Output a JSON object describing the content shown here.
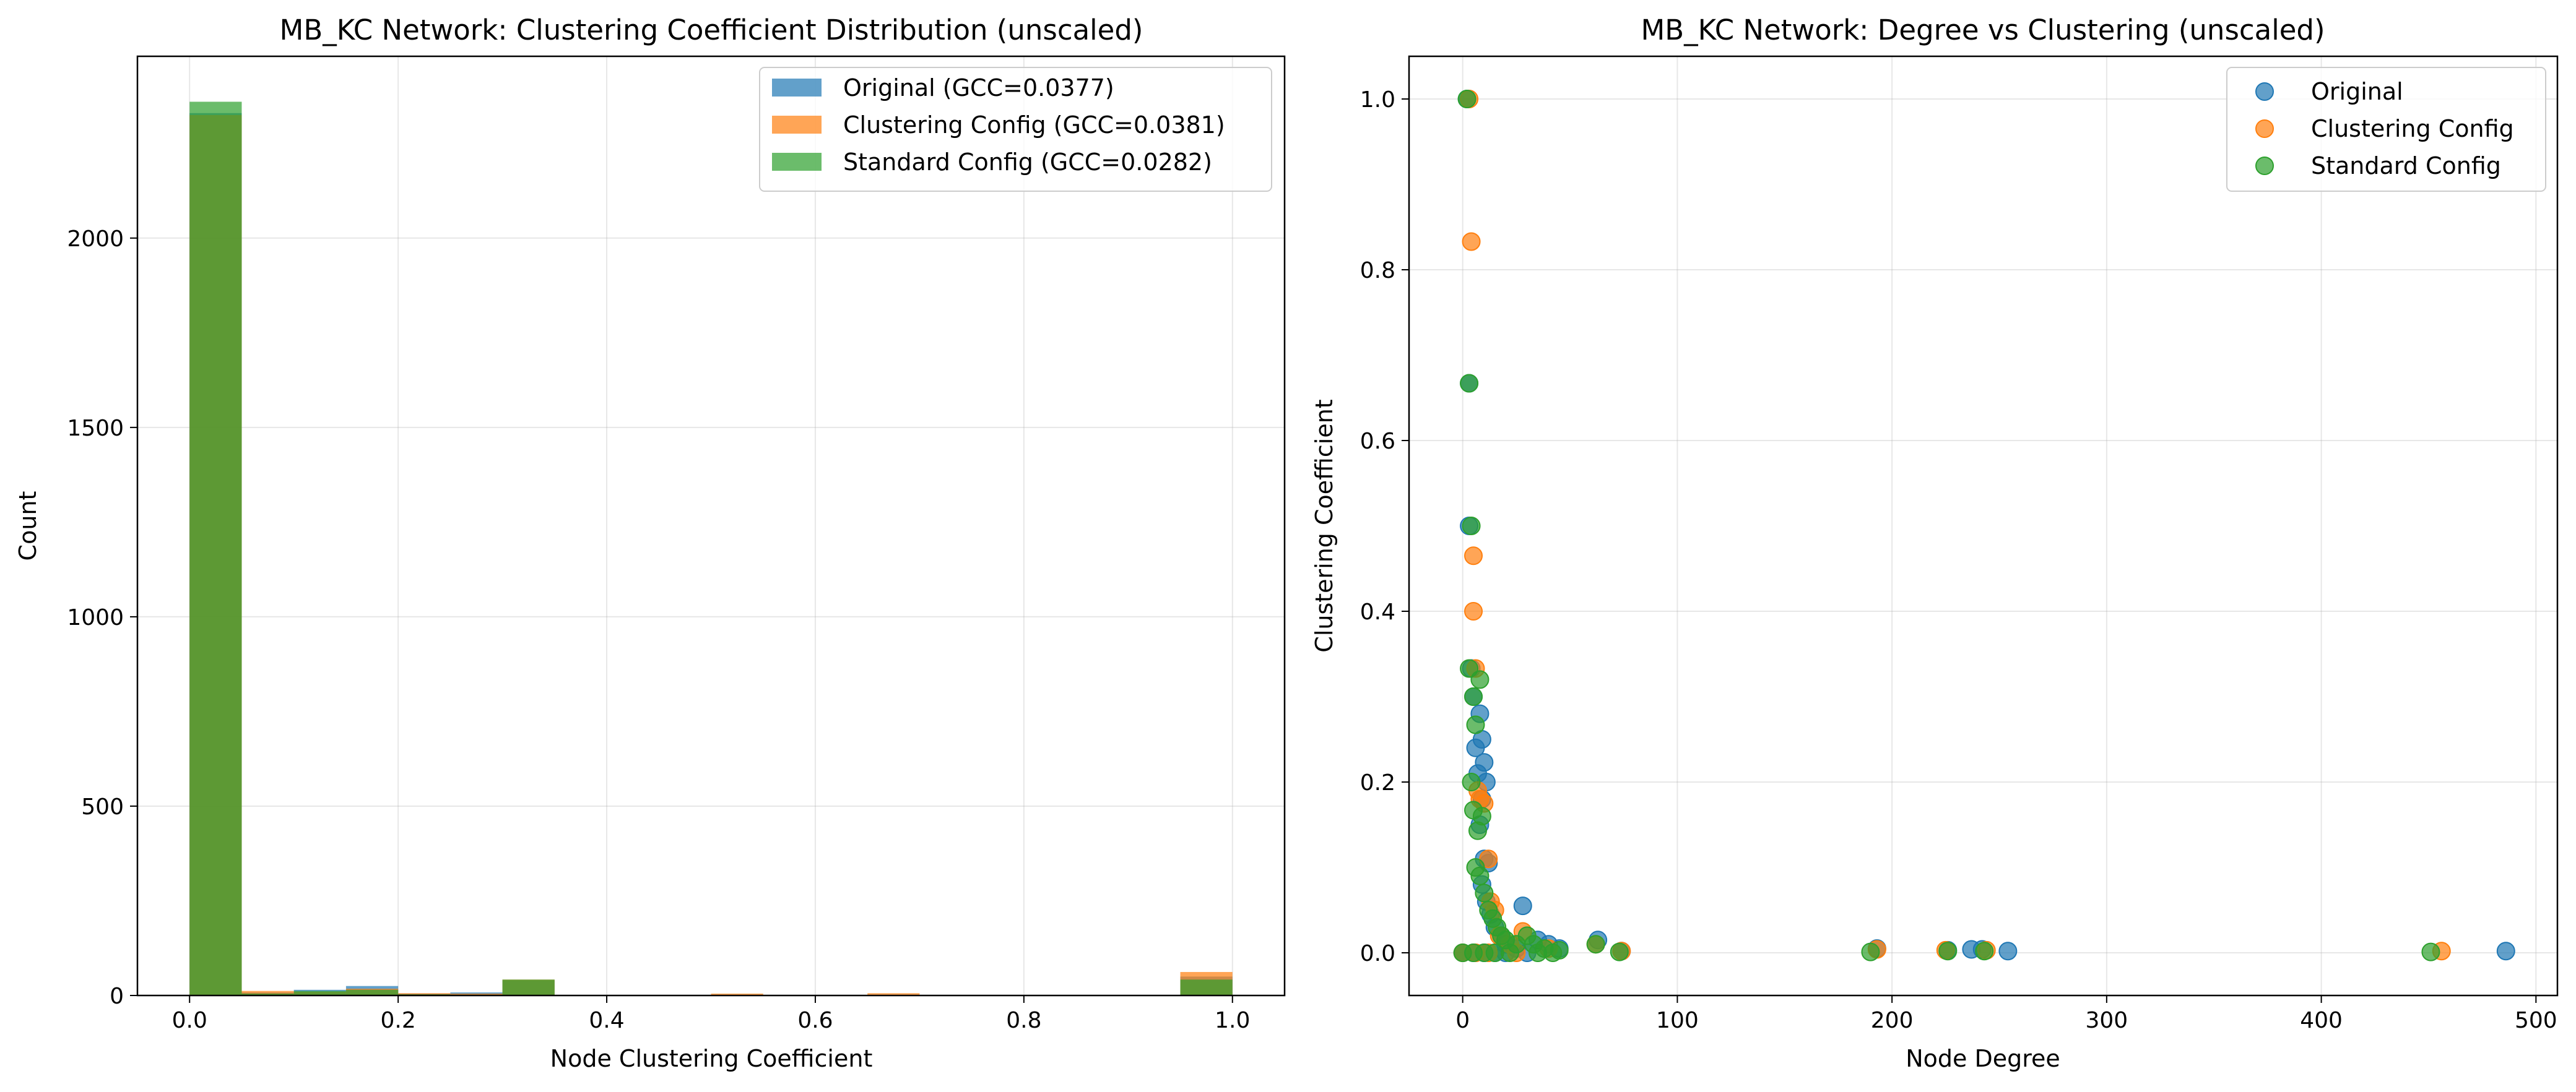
{
  "chart_data": [
    {
      "type": "histogram",
      "title": "MB_KC Network: Clustering Coefficient Distribution (unscaled)",
      "xlabel": "Node Clustering Coefficient",
      "ylabel": "Count",
      "xlim": [
        -0.05,
        1.05
      ],
      "ylim": [
        0,
        2480
      ],
      "xticks": [
        "0.0",
        "0.2",
        "0.4",
        "0.6",
        "0.8",
        "1.0"
      ],
      "yticks": [
        "0",
        "500",
        "1000",
        "1500",
        "2000"
      ],
      "bin_edges": [
        0.0,
        0.05,
        0.1,
        0.15,
        0.2,
        0.25,
        0.3,
        0.35,
        0.4,
        0.45,
        0.5,
        0.55,
        0.6,
        0.65,
        0.7,
        0.75,
        0.8,
        0.85,
        0.9,
        0.95,
        1.0
      ],
      "grid": true,
      "legend_position": "top-right",
      "series": [
        {
          "name": "Original (GCC=0.0377)",
          "color": "#1f77b4",
          "counts": [
            2330,
            8,
            15,
            25,
            5,
            8,
            40,
            0,
            0,
            0,
            0,
            0,
            0,
            0,
            0,
            0,
            0,
            0,
            0,
            50
          ]
        },
        {
          "name": "Clustering Config (GCC=0.0381)",
          "color": "#ff7f0e",
          "counts": [
            2325,
            12,
            10,
            18,
            6,
            5,
            42,
            0,
            0,
            0,
            5,
            0,
            0,
            6,
            0,
            0,
            0,
            0,
            0,
            62
          ]
        },
        {
          "name": "Standard Config (GCC=0.0282)",
          "color": "#2ca02c",
          "counts": [
            2360,
            5,
            12,
            15,
            3,
            2,
            42,
            0,
            0,
            0,
            0,
            0,
            0,
            0,
            0,
            0,
            0,
            0,
            0,
            42
          ]
        }
      ]
    },
    {
      "type": "scatter",
      "title": "MB_KC Network: Degree vs Clustering (unscaled)",
      "xlabel": "Node Degree",
      "ylabel": "Clustering Coefficient",
      "xlim": [
        -25,
        510
      ],
      "ylim": [
        -0.05,
        1.05
      ],
      "xticks": [
        "0",
        "100",
        "200",
        "300",
        "400",
        "500"
      ],
      "yticks": [
        "0.0",
        "0.2",
        "0.4",
        "0.6",
        "0.8",
        "1.0"
      ],
      "grid": true,
      "legend_position": "top-right",
      "series": [
        {
          "name": "Original",
          "color": "#1f77b4",
          "points": [
            [
              2,
              1.0
            ],
            [
              3,
              0.667
            ],
            [
              3,
              0.5
            ],
            [
              4,
              0.333
            ],
            [
              5,
              0.3
            ],
            [
              6,
              0.24
            ],
            [
              7,
              0.21
            ],
            [
              8,
              0.28
            ],
            [
              9,
              0.25
            ],
            [
              10,
              0.223
            ],
            [
              11,
              0.2
            ],
            [
              9,
              0.18
            ],
            [
              8,
              0.15
            ],
            [
              10,
              0.11
            ],
            [
              12,
              0.105
            ],
            [
              9,
              0.08
            ],
            [
              11,
              0.06
            ],
            [
              13,
              0.045
            ],
            [
              15,
              0.03
            ],
            [
              18,
              0.02
            ],
            [
              20,
              0.01
            ],
            [
              25,
              0.005
            ],
            [
              28,
              0.055
            ],
            [
              35,
              0.015
            ],
            [
              40,
              0.01
            ],
            [
              45,
              0.005
            ],
            [
              63,
              0.015
            ],
            [
              74,
              0.002
            ],
            [
              193,
              0.005
            ],
            [
              226,
              0.003
            ],
            [
              237,
              0.004
            ],
            [
              242,
              0.004
            ],
            [
              254,
              0.002
            ],
            [
              486,
              0.002
            ],
            [
              0,
              0.0
            ],
            [
              5,
              0.0
            ],
            [
              10,
              0.0
            ],
            [
              15,
              0.0
            ],
            [
              20,
              0.0
            ],
            [
              30,
              0.0
            ]
          ]
        },
        {
          "name": "Clustering Config",
          "color": "#ff7f0e",
          "points": [
            [
              3,
              1.0
            ],
            [
              4,
              0.833
            ],
            [
              5,
              0.465
            ],
            [
              5,
              0.4
            ],
            [
              6,
              0.333
            ],
            [
              7,
              0.19
            ],
            [
              8,
              0.18
            ],
            [
              10,
              0.175
            ],
            [
              12,
              0.11
            ],
            [
              13,
              0.06
            ],
            [
              15,
              0.05
            ],
            [
              17,
              0.02
            ],
            [
              22,
              0.01
            ],
            [
              28,
              0.025
            ],
            [
              40,
              0.005
            ],
            [
              62,
              0.01
            ],
            [
              74,
              0.002
            ],
            [
              193,
              0.004
            ],
            [
              225,
              0.003
            ],
            [
              244,
              0.003
            ],
            [
              456,
              0.002
            ],
            [
              0,
              0.0
            ],
            [
              6,
              0.0
            ],
            [
              12,
              0.0
            ],
            [
              25,
              0.0
            ]
          ]
        },
        {
          "name": "Standard Config",
          "color": "#2ca02c",
          "points": [
            [
              2,
              1.0
            ],
            [
              3,
              0.667
            ],
            [
              4,
              0.5
            ],
            [
              3,
              0.333
            ],
            [
              5,
              0.3
            ],
            [
              6,
              0.267
            ],
            [
              8,
              0.32
            ],
            [
              4,
              0.2
            ],
            [
              5,
              0.167
            ],
            [
              7,
              0.143
            ],
            [
              9,
              0.16
            ],
            [
              6,
              0.1
            ],
            [
              8,
              0.09
            ],
            [
              10,
              0.07
            ],
            [
              12,
              0.05
            ],
            [
              14,
              0.04
            ],
            [
              16,
              0.03
            ],
            [
              18,
              0.02
            ],
            [
              20,
              0.015
            ],
            [
              25,
              0.01
            ],
            [
              30,
              0.02
            ],
            [
              33,
              0.01
            ],
            [
              38,
              0.005
            ],
            [
              45,
              0.003
            ],
            [
              62,
              0.01
            ],
            [
              73,
              0.001
            ],
            [
              190,
              0.001
            ],
            [
              226,
              0.002
            ],
            [
              243,
              0.002
            ],
            [
              451,
              0.001
            ],
            [
              0,
              0.0
            ],
            [
              5,
              0.0
            ],
            [
              10,
              0.0
            ],
            [
              15,
              0.0
            ],
            [
              22,
              0.0
            ],
            [
              35,
              0.0
            ],
            [
              42,
              0.0
            ]
          ]
        }
      ]
    }
  ]
}
